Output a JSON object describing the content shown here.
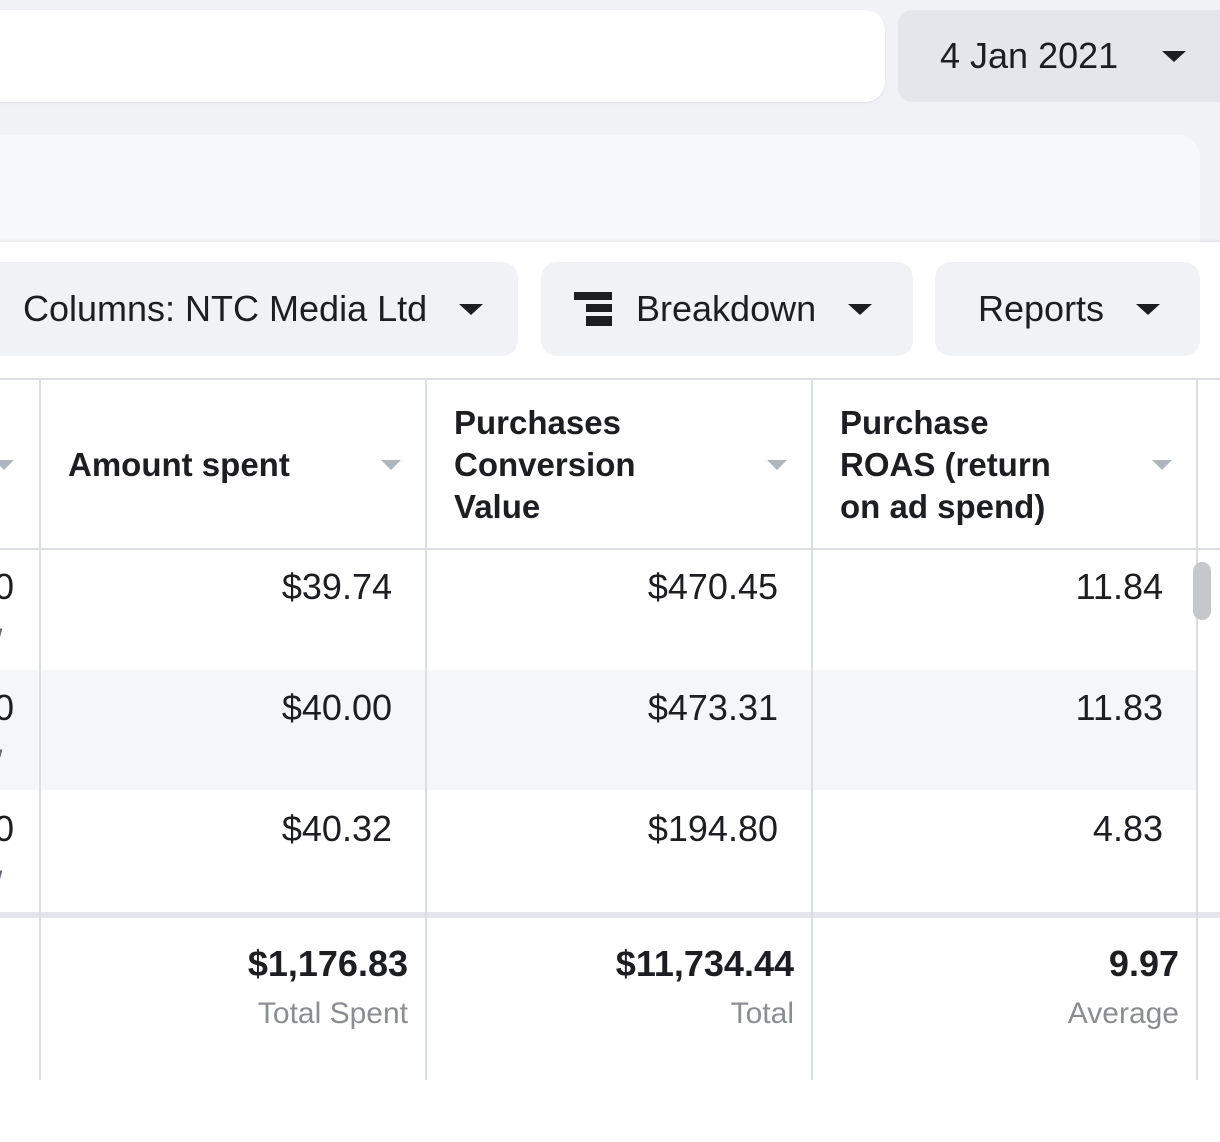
{
  "header": {
    "date_range": "4 Jan 2021"
  },
  "toolbar": {
    "columns_label": "Columns: NTC Media Ltd",
    "breakdown_label": "Breakdown",
    "reports_label": "Reports"
  },
  "table": {
    "columns": [
      {
        "key": "amount_spent",
        "label": "Amount spent"
      },
      {
        "key": "purchases_conversion_value",
        "label": "Purchases Conversion Value"
      },
      {
        "key": "purchase_roas",
        "label": "Purchase ROAS (return on ad spend)"
      }
    ],
    "rows": [
      {
        "amount_spent": "$39.74",
        "purchases_conversion_value": "$470.45",
        "purchase_roas": "11.84"
      },
      {
        "amount_spent": "$40.00",
        "purchases_conversion_value": "$473.31",
        "purchase_roas": "11.83"
      },
      {
        "amount_spent": "$40.32",
        "purchases_conversion_value": "$194.80",
        "purchase_roas": "4.83"
      }
    ],
    "totals": {
      "amount_spent": {
        "value": "$1,176.83",
        "label": "Total Spent"
      },
      "purchases_conversion_value": {
        "value": "$11,734.44",
        "label": "Total"
      },
      "purchase_roas": {
        "value": "9.97",
        "label": "Average"
      }
    },
    "clipped_left_glyphs": [
      "0",
      "/"
    ]
  },
  "colors": {
    "page_background": "#f0f2f5",
    "button_background": "#f0f2f5",
    "date_picker_background": "#e4e6eb",
    "striped_row": "#f5f6f7",
    "muted_text": "#8a8d91",
    "grid_line": "#dadde1"
  },
  "icons": {
    "date_caret": "caret-down-icon",
    "breakdown": "breakdown-icon",
    "sort": "sort-arrow-icon"
  }
}
